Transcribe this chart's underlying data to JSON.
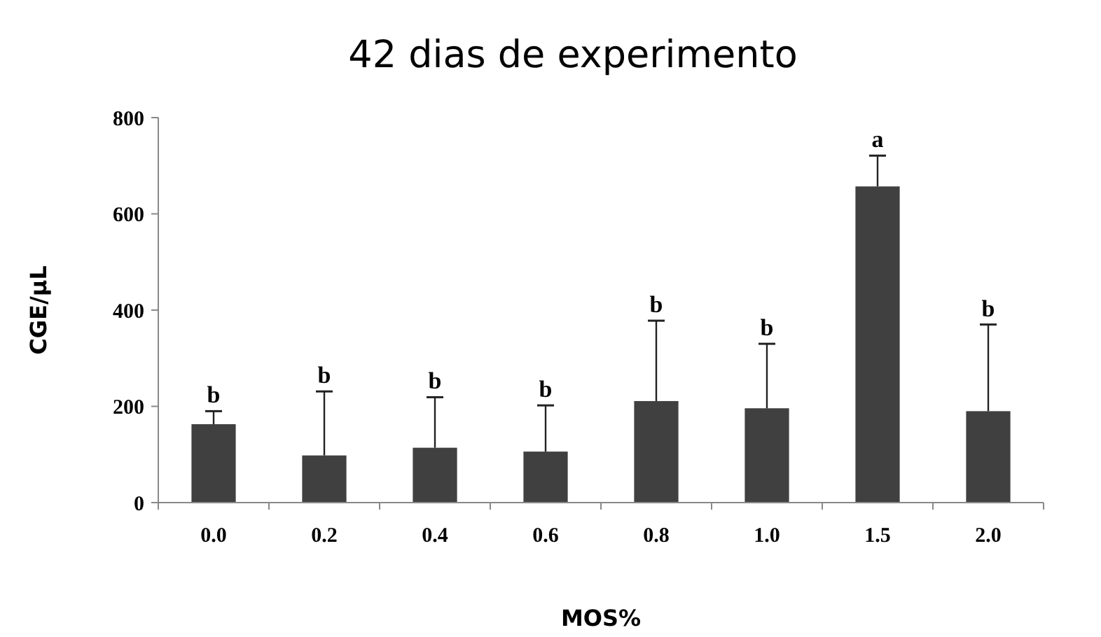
{
  "chart_data": {
    "type": "bar",
    "title": "42 dias de experimento",
    "xlabel": "MOS%",
    "ylabel": "CGE/µL",
    "categories": [
      "0.0",
      "0.2",
      "0.4",
      "0.6",
      "0.8",
      "1.0",
      "1.5",
      "2.0"
    ],
    "values": [
      163,
      98,
      114,
      106,
      211,
      196,
      657,
      190
    ],
    "errors": [
      [
        163,
        190
      ],
      [
        98,
        231
      ],
      [
        114,
        219
      ],
      [
        106,
        202
      ],
      [
        211,
        378
      ],
      [
        196,
        330
      ],
      [
        657,
        721
      ],
      [
        190,
        370
      ]
    ],
    "color": "#404040",
    "ylim": [
      0,
      800
    ],
    "yticks": [
      0,
      200,
      400,
      600,
      800
    ],
    "grid": false,
    "annotations": [
      {
        "text": "b",
        "x": "0.0",
        "y": 190
      },
      {
        "text": "b",
        "x": "0.2",
        "y": 231
      },
      {
        "text": "b",
        "x": "0.4",
        "y": 219
      },
      {
        "text": "b",
        "x": "0.6",
        "y": 202
      },
      {
        "text": "b",
        "x": "0.8",
        "y": 378
      },
      {
        "text": "b",
        "x": "1.0",
        "y": 330
      },
      {
        "text": "a",
        "x": "1.5",
        "y": 721
      },
      {
        "text": "b",
        "x": "2.0",
        "y": 370
      }
    ]
  }
}
